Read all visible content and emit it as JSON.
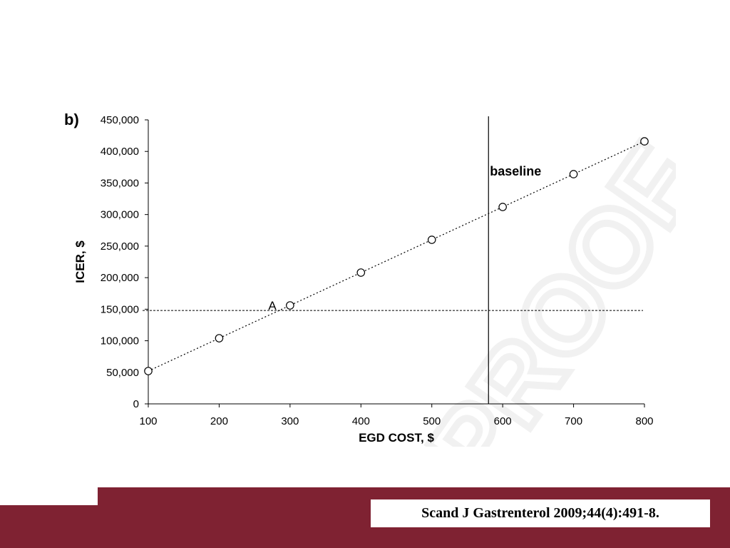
{
  "slide": {
    "citation": "Scand J Gastrenterol 2009;44(4):491-8.",
    "footer_color": "#7f2232"
  },
  "chart_data": {
    "type": "scatter",
    "panel_label": "b)",
    "xlabel": "EGD COST, $",
    "ylabel": "ICER, $",
    "xlim": [
      100,
      800
    ],
    "ylim": [
      0,
      450000
    ],
    "x_ticks": [
      100,
      200,
      300,
      400,
      500,
      600,
      700,
      800
    ],
    "x_tick_labels": [
      "100",
      "200",
      "300",
      "400",
      "500",
      "600",
      "700",
      "800"
    ],
    "y_ticks": [
      0,
      50000,
      100000,
      150000,
      200000,
      250000,
      300000,
      350000,
      400000,
      450000
    ],
    "y_tick_labels": [
      "0",
      "50,000",
      "100,000",
      "150,000",
      "200,000",
      "250,000",
      "300,000",
      "350,000",
      "400,000",
      "450,000"
    ],
    "series": [
      {
        "marker": "open-circle",
        "x": [
          100,
          200,
          300,
          400,
          500,
          600,
          700,
          800
        ],
        "y": [
          52000,
          104000,
          156000,
          208000,
          260000,
          312000,
          364000,
          416000
        ]
      }
    ],
    "trend_line": {
      "style": "dotted",
      "x": [
        100,
        800
      ],
      "y": [
        52000,
        416000
      ]
    },
    "threshold_line": {
      "axis": "y",
      "value": 148000,
      "style": "dashed"
    },
    "baseline_line": {
      "axis": "x",
      "value": 580,
      "label": "baseline"
    },
    "annotations": [
      {
        "text": "A",
        "x": 275,
        "y": 148000
      }
    ],
    "grid": false,
    "watermark": "PROOF"
  }
}
